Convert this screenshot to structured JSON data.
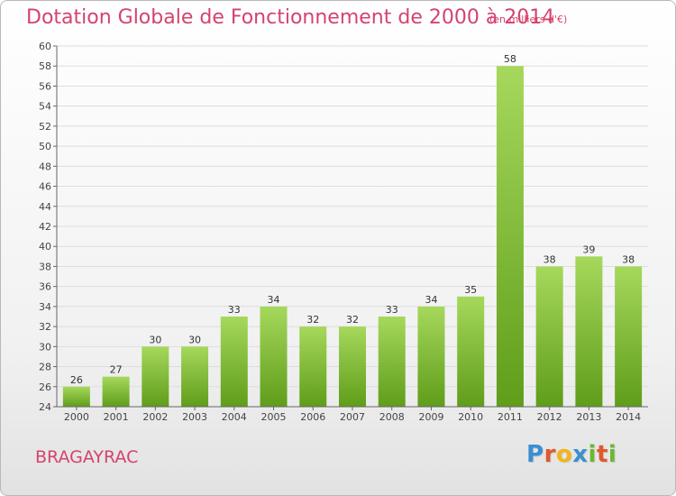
{
  "header": {
    "title": "Dotation Globale de Fonctionnement de 2000 à 2014",
    "unit": "(en milliers d'€)"
  },
  "footer": {
    "city": "BRAGAYRAC",
    "logo_text": "Proxiti",
    "logo_letter_colors": [
      "#3a8fd0",
      "#e0592b",
      "#f2b51c",
      "#3a8fd0",
      "#6cb830",
      "#e0592b",
      "#6cb830"
    ]
  },
  "colors": {
    "accent": "#d4436e",
    "bar_top": "#a6d85c",
    "bar_bottom": "#5f9d1a",
    "grid": "#dddddd"
  },
  "chart_data": {
    "type": "bar",
    "categories": [
      "2000",
      "2001",
      "2002",
      "2003",
      "2004",
      "2005",
      "2006",
      "2007",
      "2008",
      "2009",
      "2010",
      "2011",
      "2012",
      "2013",
      "2014"
    ],
    "values": [
      26,
      27,
      30,
      30,
      33,
      34,
      32,
      32,
      33,
      34,
      35,
      58,
      38,
      39,
      38
    ],
    "ylim": [
      24,
      60
    ],
    "ytick_step": 2,
    "grid": true,
    "data_labels": true
  }
}
